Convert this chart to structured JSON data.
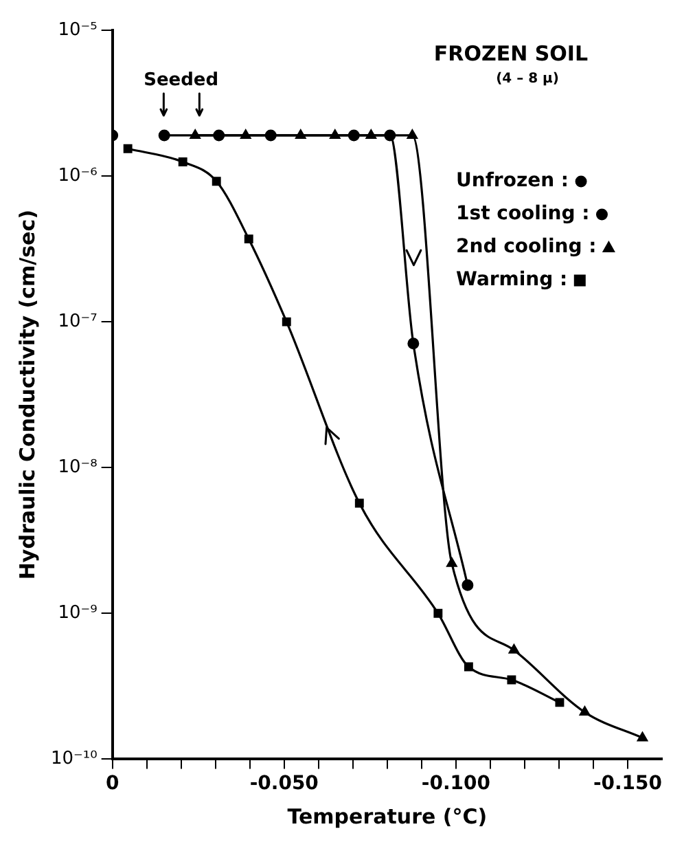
{
  "chart_data": {
    "type": "line",
    "title": "FROZEN SOIL",
    "subtitle": "(4 – 8 μ)",
    "xlabel": "Temperature (°C)",
    "ylabel": "Hydraulic Conductivity (cm/sec)",
    "log": "y",
    "grid": false,
    "legend": "top right",
    "xlim": [
      0,
      -0.16
    ],
    "ylim": [
      1e-10,
      1e-05
    ],
    "xticks": [
      {
        "value": 0,
        "label": "0"
      },
      {
        "value": -0.01,
        "label": null
      },
      {
        "value": -0.02,
        "label": null
      },
      {
        "value": -0.03,
        "label": null
      },
      {
        "value": -0.04,
        "label": null
      },
      {
        "value": -0.05,
        "label": "-0.050"
      },
      {
        "value": -0.06,
        "label": null
      },
      {
        "value": -0.07,
        "label": null
      },
      {
        "value": -0.08,
        "label": null
      },
      {
        "value": -0.09,
        "label": null
      },
      {
        "value": -0.1,
        "label": "-0.100"
      },
      {
        "value": -0.11,
        "label": null
      },
      {
        "value": -0.12,
        "label": null
      },
      {
        "value": -0.13,
        "label": null
      },
      {
        "value": -0.14,
        "label": null
      },
      {
        "value": -0.15,
        "label": "-0.150"
      }
    ],
    "yticks": [
      {
        "value": 1e-10,
        "label": "10⁻¹⁰"
      },
      {
        "value": 1e-09,
        "label": "10⁻⁹"
      },
      {
        "value": 1e-08,
        "label": "10⁻⁸"
      },
      {
        "value": 1e-07,
        "label": "10⁻⁷"
      },
      {
        "value": 1e-06,
        "label": "10⁻⁶"
      },
      {
        "value": 1e-05,
        "label": "10⁻⁵"
      }
    ],
    "annotations": [
      "Seeded"
    ],
    "series": [
      {
        "name": "Unfrozen :",
        "type": "scatter",
        "marker": "circle",
        "color": "#000000",
        "x": [
          0
        ],
        "values": [
          1.9e-06
        ]
      },
      {
        "name": "1st cooling :",
        "type": "line",
        "marker": "circle",
        "color": "#000000",
        "x": [
          -0.0151,
          -0.031,
          -0.0461,
          -0.0703,
          -0.0808,
          -0.0876,
          -0.1034
        ],
        "values": [
          1.9e-06,
          1.9e-06,
          1.9e-06,
          1.9e-06,
          1.9e-06,
          7.1e-08,
          1.56e-09
        ]
      },
      {
        "name": "2nd cooling :",
        "type": "line",
        "marker": "triangle",
        "color": "#000000",
        "x": [
          -0.0241,
          -0.0388,
          -0.0548,
          -0.0648,
          -0.0753,
          -0.0873,
          -0.0988,
          -0.1169,
          -0.1375,
          -0.1543
        ],
        "values": [
          1.9e-06,
          1.9e-06,
          1.9e-06,
          1.9e-06,
          1.9e-06,
          1.9e-06,
          2.2e-09,
          5.6e-10,
          2.1e-10,
          1.4e-10
        ]
      },
      {
        "name": "Warming :",
        "type": "line",
        "marker": "square",
        "color": "#000000",
        "x": [
          -0.0045,
          -0.0205,
          -0.0303,
          -0.0397,
          -0.0507,
          -0.0719,
          -0.0948,
          -0.1037,
          -0.1162,
          -0.1302
        ],
        "values": [
          1.54e-06,
          1.25e-06,
          9.2e-07,
          3.7e-07,
          1e-07,
          5.7e-09,
          1e-09,
          4.3e-10,
          3.5e-10,
          2.45e-10
        ]
      }
    ]
  }
}
